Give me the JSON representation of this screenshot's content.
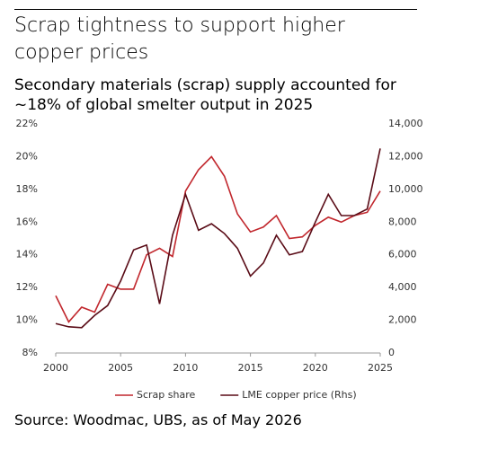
{
  "chart_data": {
    "type": "line",
    "title": "Scrap tightness to support higher copper prices",
    "subtitle": "Secondary materials (scrap) supply accounted for ~18% of global smelter output in 2025",
    "source": "Source: Woodmac, UBS, as of May 2026",
    "x": [
      2000,
      2001,
      2002,
      2003,
      2004,
      2005,
      2006,
      2007,
      2008,
      2009,
      2010,
      2011,
      2012,
      2013,
      2014,
      2015,
      2016,
      2017,
      2018,
      2019,
      2020,
      2021,
      2022,
      2023,
      2024,
      2025
    ],
    "xlim": [
      2000,
      2025
    ],
    "xticks": [
      2000,
      2005,
      2010,
      2015,
      2020,
      2025
    ],
    "ylim": [
      8,
      22
    ],
    "yticks": [
      {
        "value": 8,
        "label": "8%"
      },
      {
        "value": 10,
        "label": "10%"
      },
      {
        "value": 12,
        "label": "12%"
      },
      {
        "value": 14,
        "label": "14%"
      },
      {
        "value": 16,
        "label": "16%"
      },
      {
        "value": 18,
        "label": "18%"
      },
      {
        "value": 20,
        "label": "20%"
      },
      {
        "value": 22,
        "label": "22%"
      }
    ],
    "y2lim": [
      0,
      14000
    ],
    "y2ticks": [
      0,
      {
        "value": 2000,
        "label": "2,000"
      },
      {
        "value": 4000,
        "label": "4,000"
      },
      {
        "value": 6000,
        "label": "6,000"
      },
      {
        "value": 8000,
        "label": "8,000"
      },
      {
        "value": 10000,
        "label": "10,000"
      },
      {
        "value": 12000,
        "label": "12,000"
      },
      {
        "value": 14000,
        "label": "14,000"
      }
    ],
    "grid": false,
    "legend": "bottom",
    "series": [
      {
        "name": "Scrap share",
        "color": "#c1272d",
        "values": [
          11.5,
          9.9,
          10.8,
          10.5,
          12.2,
          11.9,
          11.9,
          14.0,
          14.4,
          13.9,
          17.9,
          19.2,
          20.0,
          18.8,
          16.5,
          15.4,
          15.7,
          16.4,
          15.0,
          15.1,
          15.8,
          16.3,
          16.0,
          16.4,
          16.6,
          17.9
        ]
      },
      {
        "name": "LME copper price (Rhs)",
        "color": "#5a0c17",
        "axis": "y2",
        "values": [
          1800,
          1600,
          1550,
          2300,
          2900,
          4400,
          6300,
          6600,
          3000,
          7200,
          9700,
          7500,
          7900,
          7300,
          6400,
          4700,
          5500,
          7200,
          6000,
          6200,
          8000,
          9700,
          8400,
          8400,
          8800,
          12500
        ]
      }
    ]
  }
}
